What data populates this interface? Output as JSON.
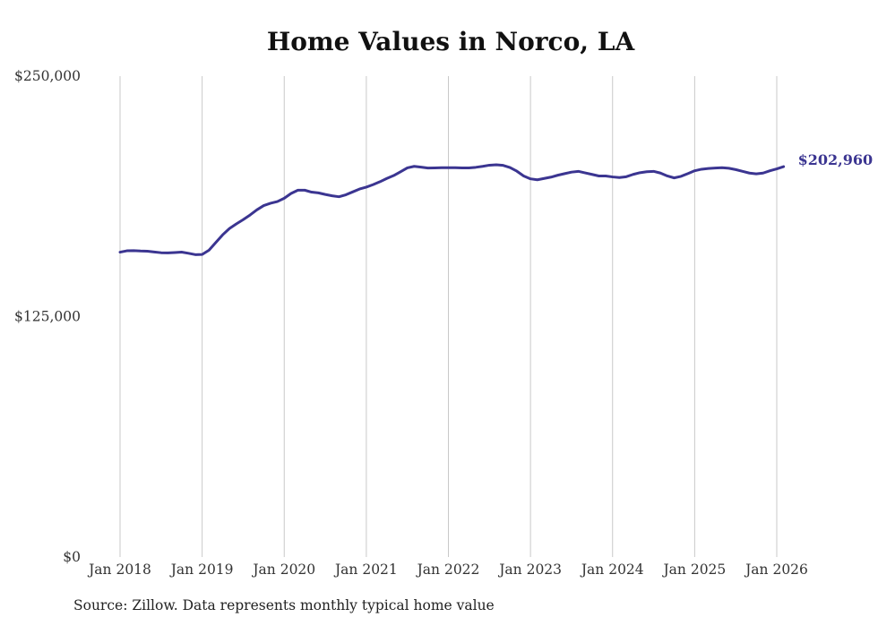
{
  "colors": {
    "line": "#3b3591",
    "grid": "#c9c9c9",
    "text": "#333333"
  },
  "chart_data": {
    "type": "line",
    "title": "Home Values in Norco, LA",
    "xlabel": "",
    "ylabel": "",
    "ylim": [
      0,
      250000
    ],
    "y_ticks": [
      {
        "value": 0,
        "label": "$0"
      },
      {
        "value": 125000,
        "label": "$125,000"
      },
      {
        "value": 250000,
        "label": "$250,000"
      }
    ],
    "x_ticks": [
      {
        "date": "2018-01",
        "label": "Jan 2018"
      },
      {
        "date": "2019-01",
        "label": "Jan 2019"
      },
      {
        "date": "2020-01",
        "label": "Jan 2020"
      },
      {
        "date": "2021-01",
        "label": "Jan 2021"
      },
      {
        "date": "2022-01",
        "label": "Jan 2022"
      },
      {
        "date": "2023-01",
        "label": "Jan 2023"
      },
      {
        "date": "2024-01",
        "label": "Jan 2024"
      },
      {
        "date": "2025-01",
        "label": "Jan 2025"
      },
      {
        "date": "2026-01",
        "label": "Jan 2026"
      }
    ],
    "grid": "vertical",
    "end_label": "$202,960",
    "series": [
      {
        "x": [
          "2018-01",
          "2018-02",
          "2018-03",
          "2018-04",
          "2018-05",
          "2018-06",
          "2018-07",
          "2018-08",
          "2018-09",
          "2018-10",
          "2018-11",
          "2018-12",
          "2019-01",
          "2019-02",
          "2019-03",
          "2019-04",
          "2019-05",
          "2019-06",
          "2019-07",
          "2019-08",
          "2019-09",
          "2019-10",
          "2019-11",
          "2019-12",
          "2020-01",
          "2020-02",
          "2020-03",
          "2020-04",
          "2020-05",
          "2020-06",
          "2020-07",
          "2020-08",
          "2020-09",
          "2020-10",
          "2020-11",
          "2020-12",
          "2021-01",
          "2021-02",
          "2021-03",
          "2021-04",
          "2021-05",
          "2021-06",
          "2021-07",
          "2021-08",
          "2021-09",
          "2021-10",
          "2021-11",
          "2021-12",
          "2022-01",
          "2022-02",
          "2022-03",
          "2022-04",
          "2022-05",
          "2022-06",
          "2022-07",
          "2022-08",
          "2022-09",
          "2022-10",
          "2022-11",
          "2022-12",
          "2023-01",
          "2023-02",
          "2023-03",
          "2023-04",
          "2023-05",
          "2023-06",
          "2023-07",
          "2023-08",
          "2023-09",
          "2023-10",
          "2023-11",
          "2023-12",
          "2024-01",
          "2024-02",
          "2024-03",
          "2024-04",
          "2024-05",
          "2024-06",
          "2024-07",
          "2024-08",
          "2024-09",
          "2024-10",
          "2024-11",
          "2024-12",
          "2025-01",
          "2025-02",
          "2025-03",
          "2025-04",
          "2025-05",
          "2025-06",
          "2025-07",
          "2025-08",
          "2025-09",
          "2025-10",
          "2025-11",
          "2025-12",
          "2026-01",
          "2026-02"
        ],
        "values": [
          158500,
          159200,
          159300,
          159100,
          159000,
          158600,
          158200,
          158100,
          158300,
          158500,
          157900,
          157200,
          157300,
          159500,
          163500,
          167500,
          170800,
          173200,
          175400,
          177800,
          180500,
          182700,
          183900,
          184800,
          186500,
          189000,
          190700,
          190700,
          189700,
          189300,
          188500,
          187800,
          187300,
          188300,
          189800,
          191300,
          192300,
          193600,
          195100,
          196800,
          198300,
          200300,
          202300,
          203100,
          202700,
          202200,
          202300,
          202400,
          202400,
          202400,
          202300,
          202300,
          202600,
          203100,
          203700,
          203900,
          203600,
          202500,
          200600,
          198100,
          196600,
          196100,
          196800,
          197500,
          198500,
          199300,
          200100,
          200500,
          199700,
          198900,
          198100,
          198100,
          197600,
          197300,
          197700,
          198900,
          199800,
          200300,
          200500,
          199600,
          198100,
          197100,
          197900,
          199300,
          200800,
          201600,
          202000,
          202200,
          202400,
          202100,
          201400,
          200500,
          199600,
          199200,
          199600,
          200800,
          201800,
          202960
        ]
      }
    ]
  },
  "footer": {
    "source": "Source: Zillow. Data represents monthly typical home value"
  }
}
